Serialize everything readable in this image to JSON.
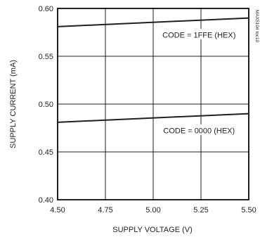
{
  "chart_data": {
    "type": "line",
    "xlabel": "SUPPLY VOLTAGE (V)",
    "ylabel": "SUPPLY CURRENT (mA)",
    "xlim": [
      4.5,
      5.5
    ],
    "ylim": [
      0.4,
      0.6
    ],
    "x_ticks": [
      "4.50",
      "4.75",
      "5.00",
      "5.25",
      "5.50"
    ],
    "y_ticks": [
      "0.40",
      "0.45",
      "0.50",
      "0.55",
      "0.60"
    ],
    "grid": true,
    "series": [
      {
        "name": "CODE = 1FFE (HEX)",
        "x": [
          4.5,
          5.5
        ],
        "y": [
          0.581,
          0.59
        ]
      },
      {
        "name": "CODE = 0000 (HEX)",
        "x": [
          4.5,
          5.5
        ],
        "y": [
          0.481,
          0.49
        ]
      }
    ],
    "annotations": [
      {
        "text": "CODE = 1FFE (HEX)",
        "x": 5.24,
        "y": 0.5725
      },
      {
        "text": "CODE = 0000 (HEX)",
        "x": 5.24,
        "y": 0.4725
      }
    ],
    "watermark": "MAX5104 toc10"
  }
}
